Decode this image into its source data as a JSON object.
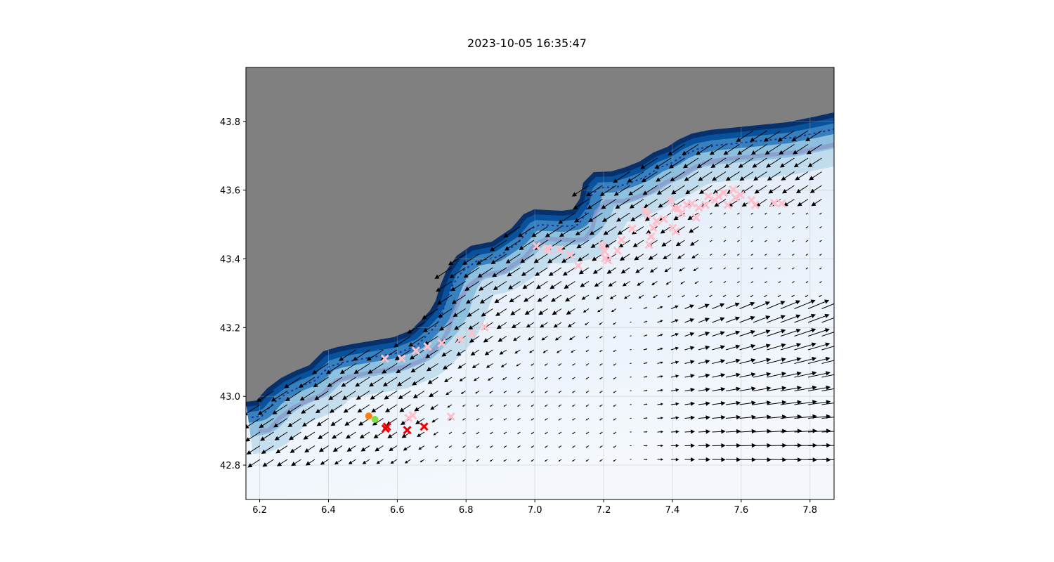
{
  "title": "2023-10-05 16:35:47",
  "chart_data": {
    "type": "map-quiver-scatter",
    "title": "2023-10-05 16:35:47",
    "xlim": [
      6.16,
      7.87
    ],
    "ylim": [
      42.7,
      43.957
    ],
    "xticks": [
      "6.2",
      "6.4",
      "6.6",
      "6.8",
      "7.0",
      "7.2",
      "7.4",
      "7.6",
      "7.8"
    ],
    "yticks": [
      "42.8",
      "43.0",
      "43.2",
      "43.4",
      "43.6",
      "43.8"
    ],
    "grid": true,
    "colors": {
      "land": "#808080",
      "water_deep": "#08306b",
      "water_shallow": "#f2f7fd",
      "isobath": "#8c96c6",
      "pink_marker": "#ffc0cb",
      "red_marker": "#ee0000",
      "orange_dot": "#ff7f0e",
      "green_dot": "#7fe040",
      "arrows": "#000000"
    },
    "pink_markers": [
      [
        6.564,
        43.11
      ],
      [
        6.613,
        43.11
      ],
      [
        6.654,
        43.133
      ],
      [
        6.688,
        43.145
      ],
      [
        6.729,
        43.155
      ],
      [
        6.782,
        43.165
      ],
      [
        6.817,
        43.184
      ],
      [
        6.854,
        43.202
      ],
      [
        7.005,
        43.437
      ],
      [
        7.036,
        43.431
      ],
      [
        7.04,
        43.427
      ],
      [
        7.073,
        43.427
      ],
      [
        7.103,
        43.412
      ],
      [
        7.126,
        43.38
      ],
      [
        7.197,
        43.439
      ],
      [
        7.203,
        43.422
      ],
      [
        7.205,
        43.402
      ],
      [
        7.213,
        43.396
      ],
      [
        7.24,
        43.424
      ],
      [
        7.252,
        43.455
      ],
      [
        7.283,
        43.488
      ],
      [
        7.32,
        43.541
      ],
      [
        7.328,
        43.529
      ],
      [
        7.332,
        43.441
      ],
      [
        7.338,
        43.465
      ],
      [
        7.344,
        43.49
      ],
      [
        7.354,
        43.51
      ],
      [
        7.375,
        43.516
      ],
      [
        7.395,
        43.571
      ],
      [
        7.406,
        43.547
      ],
      [
        7.401,
        43.49
      ],
      [
        7.41,
        43.48
      ],
      [
        7.416,
        43.547
      ],
      [
        7.426,
        43.533
      ],
      [
        7.442,
        43.557
      ],
      [
        7.457,
        43.561
      ],
      [
        7.469,
        43.52
      ],
      [
        7.477,
        43.549
      ],
      [
        7.496,
        43.557
      ],
      [
        7.504,
        43.582
      ],
      [
        7.524,
        43.571
      ],
      [
        7.534,
        43.582
      ],
      [
        7.549,
        43.592
      ],
      [
        7.577,
        43.602
      ],
      [
        7.583,
        43.578
      ],
      [
        7.598,
        43.586
      ],
      [
        7.561,
        43.557
      ],
      [
        7.63,
        43.571
      ],
      [
        7.641,
        43.557
      ],
      [
        7.696,
        43.563
      ],
      [
        7.718,
        43.561
      ],
      [
        6.756,
        42.941
      ],
      [
        6.645,
        42.945
      ],
      [
        6.633,
        42.937
      ]
    ],
    "red_markers": [
      [
        6.566,
        42.906
      ],
      [
        6.57,
        42.912
      ],
      [
        6.629,
        42.902
      ],
      [
        6.678,
        42.912
      ]
    ],
    "dots": [
      {
        "color": "orange",
        "lonlat": [
          6.517,
          42.943
        ]
      },
      {
        "color": "green",
        "lonlat": [
          6.535,
          42.933
        ]
      }
    ]
  }
}
